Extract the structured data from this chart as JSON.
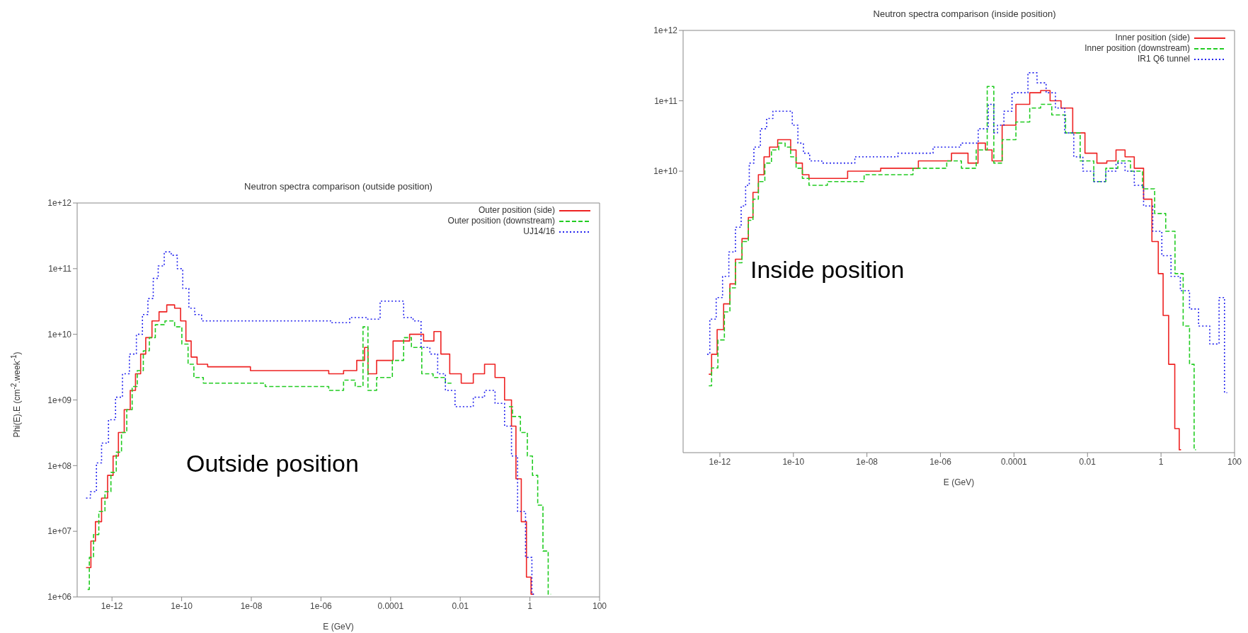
{
  "chart_data": [
    {
      "type": "step",
      "title": "Neutron spectra comparison (outside position)",
      "xlabel": "E (GeV)",
      "ylabel": "Phi(E).E (cm$^{-2}$.week$^{-1}$)",
      "log": "xy",
      "legend": "top right",
      "annotations": [
        "Outside position"
      ],
      "xlim": [
        1e-13,
        100
      ],
      "xticks": [
        {
          "value": 1e-12,
          "label": "1e-12"
        },
        {
          "value": 1e-10,
          "label": "1e-10"
        },
        {
          "value": 1e-08,
          "label": "1e-08"
        },
        {
          "value": 1e-06,
          "label": "1e-06"
        },
        {
          "value": 0.0001,
          "label": "0.0001"
        },
        {
          "value": 0.01,
          "label": "0.01"
        },
        {
          "value": 1,
          "label": "1"
        },
        {
          "value": 100,
          "label": "100"
        }
      ],
      "ylim": [
        1000000.0,
        1000000000000.0
      ],
      "yticks": [
        {
          "value": 1000000.0,
          "label": "1e+06"
        },
        {
          "value": 10000000.0,
          "label": "1e+07"
        },
        {
          "value": 100000000.0,
          "label": "1e+08"
        },
        {
          "value": 1000000000.0,
          "label": "1e+09"
        },
        {
          "value": 10000000000.0,
          "label": "1e+10"
        },
        {
          "value": 100000000000.0,
          "label": "1e+11"
        },
        {
          "value": 1000000000000.0,
          "label": "1e+12"
        }
      ],
      "series": [
        {
          "name": "Outer position (side)",
          "color": "#ee2222",
          "line_style": "solid",
          "x": [
            1.8e-13,
            2.2e-13,
            2.8e-13,
            4e-13,
            6.3e-13,
            8.9e-13,
            1.3e-12,
            1.8e-12,
            2.8e-12,
            4e-12,
            5.6e-12,
            7.9e-12,
            1.1e-11,
            1.8e-11,
            2.8e-11,
            5e-11,
            7.9e-11,
            1.1e-10,
            1.6e-10,
            2.2e-10,
            3.5e-10,
            8.9e-10,
            1e-07,
            1e-06,
            2.8e-06,
            7.1e-06,
            1.6e-05,
            2e-05,
            2.5e-05,
            6.3e-05,
            0.00022,
            0.00056,
            0.0014,
            0.0022,
            0.0035,
            0.0071,
            0.016,
            0.035,
            0.071,
            0.14,
            0.25,
            0.35,
            0.45,
            0.71,
            0.89,
            1.3
          ],
          "values": [
            2800000.0,
            2800000.0,
            7100000.0,
            14000000.0,
            32000000.0,
            71000000.0,
            140000000.0,
            320000000.0,
            710000000.0,
            1400000000.0,
            2500000000.0,
            5000000000.0,
            8900000000.0,
            16000000000.0,
            22000000000.0,
            28000000000.0,
            25000000000.0,
            16000000000.0,
            7900000000.0,
            4500000000.0,
            3500000000.0,
            3200000000.0,
            2800000000.0,
            2800000000.0,
            2500000000.0,
            2800000000.0,
            4000000000.0,
            6300000000.0,
            2500000000.0,
            4000000000.0,
            7900000000.0,
            10000000000.0,
            7900000000.0,
            11000000000.0,
            5000000000.0,
            2500000000.0,
            1800000000.0,
            2500000000.0,
            3500000000.0,
            2200000000.0,
            1000000000.0,
            400000000.0,
            63000000.0,
            14000000.0,
            2000000.0,
            1100000.0
          ]
        },
        {
          "name": "Outer position (downstream)",
          "color": "#22cc22",
          "line_style": "dashed",
          "x": [
            2e-13,
            2.5e-13,
            3.5e-13,
            5e-13,
            7.9e-13,
            1.1e-12,
            1.6e-12,
            2.2e-12,
            3.2e-12,
            4.5e-12,
            6.3e-12,
            1e-11,
            1.4e-11,
            2.2e-11,
            5e-11,
            7.9e-11,
            1.3e-10,
            1.8e-10,
            2.8e-10,
            6.3e-10,
            1e-06,
            2.8e-06,
            7.1e-06,
            1.3e-05,
            2e-05,
            2.5e-05,
            6.3e-05,
            0.0002,
            0.00028,
            0.00056,
            0.0011,
            0.0025,
            0.0056,
            0.035,
            0.25,
            0.4,
            0.71,
            1,
            1.4,
            2,
            2.8,
            4
          ],
          "values": [
            1300000.0,
            4000000.0,
            8900000.0,
            20000000.0,
            40000000.0,
            79000000.0,
            160000000.0,
            320000000.0,
            710000000.0,
            1600000000.0,
            2800000000.0,
            5600000000.0,
            8900000000.0,
            14000000000.0,
            16000000000.0,
            13000000000.0,
            7100000000.0,
            3500000000.0,
            2200000000.0,
            1800000000.0,
            1600000000.0,
            1400000000.0,
            2000000000.0,
            1600000000.0,
            13000000000.0,
            1400000000.0,
            2200000000.0,
            4000000000.0,
            8900000000.0,
            6300000000.0,
            2500000000.0,
            2200000000.0,
            1800000000.0,
            null,
            790000000.0,
            560000000.0,
            320000000.0,
            140000000.0,
            71000000.0,
            25000000.0,
            5000000.0,
            1100000.0
          ]
        },
        {
          "name": "UJ14/16",
          "color": "#2222ee",
          "line_style": "dotted",
          "x": [
            1.8e-13,
            3.2e-13,
            4e-13,
            6.3e-13,
            1e-12,
            1.6e-12,
            2.5e-12,
            4e-12,
            6.3e-12,
            8.9e-12,
            1.3e-11,
            1.8e-11,
            2.5e-11,
            4e-11,
            6.3e-11,
            8.9e-11,
            1.3e-10,
            2e-10,
            2.8e-10,
            5e-10,
            1e-08,
            1.3e-06,
            2.8e-06,
            1.6e-05,
            2.5e-05,
            0.0001,
            0.00016,
            0.00035,
            0.00056,
            0.001,
            0.0018,
            0.0028,
            0.005,
            0.01,
            0.016,
            0.035,
            0.071,
            0.14,
            0.25,
            0.35,
            0.56,
            1,
            1.3
          ],
          "values": [
            32000000.0,
            40000000.0,
            110000000.0,
            220000000.0,
            500000000.0,
            1100000000.0,
            2500000000.0,
            5000000000.0,
            10000000000.0,
            20000000000.0,
            35000000000.0,
            71000000000.0,
            110000000000.0,
            180000000000.0,
            160000000000.0,
            100000000000.0,
            50000000000.0,
            25000000000.0,
            20000000000.0,
            16000000000.0,
            16000000000.0,
            16000000000.0,
            15000000000.0,
            18000000000.0,
            17000000000.0,
            32000000000.0,
            32000000000.0,
            18000000000.0,
            16000000000.0,
            6300000000.0,
            5000000000.0,
            2500000000.0,
            1400000000.0,
            790000000.0,
            790000000.0,
            1100000000.0,
            1400000000.0,
            890000000.0,
            400000000.0,
            140000000.0,
            20000000.0,
            4000000.0,
            1100000.0
          ]
        }
      ]
    },
    {
      "type": "step",
      "title": "Neutron spectra comparison (inside position)",
      "xlabel": "E (GeV)",
      "log": "xy",
      "legend": "top right",
      "annotations": [
        "Inside position"
      ],
      "xlim": [
        1e-13,
        100
      ],
      "xticks": [
        {
          "value": 1e-12,
          "label": "1e-12"
        },
        {
          "value": 1e-10,
          "label": "1e-10"
        },
        {
          "value": 1e-08,
          "label": "1e-08"
        },
        {
          "value": 1e-06,
          "label": "1e-06"
        },
        {
          "value": 0.0001,
          "label": "0.0001"
        },
        {
          "value": 0.01,
          "label": "0.01"
        },
        {
          "value": 1,
          "label": "1"
        },
        {
          "value": 100,
          "label": "100"
        }
      ],
      "ylim": [
        1000000.0,
        1000000000000.0
      ],
      "yticks": [
        {
          "value": 10000000000.0,
          "label": "1e+10"
        },
        {
          "value": 100000000000.0,
          "label": "1e+11"
        },
        {
          "value": 1000000000000.0,
          "label": "1e+12"
        }
      ],
      "series": [
        {
          "name": "Inner position (side)",
          "color": "#ee2222",
          "line_style": "solid",
          "x": [
            5e-13,
            7.1e-13,
            1e-12,
            1.6e-12,
            2.2e-12,
            3.2e-12,
            5e-12,
            7.1e-12,
            8.9e-12,
            1.4e-11,
            1.8e-11,
            2.8e-11,
            5e-11,
            7.1e-11,
            1e-10,
            1.4e-10,
            2.2e-10,
            3.2e-10,
            1e-09,
            8.9e-09,
            6.3e-08,
            1e-06,
            4e-06,
            7.9e-06,
            1.4e-05,
            2e-05,
            3.2e-05,
            7.1e-05,
            0.00018,
            0.0004,
            0.00071,
            0.0013,
            0.0028,
            0.0056,
            0.013,
            0.025,
            0.045,
            0.079,
            0.14,
            0.25,
            0.45,
            0.71,
            1,
            1.3,
            2,
            2.8,
            3.5
          ],
          "values": [
            13000000.0,
            25000000.0,
            56000000.0,
            130000000.0,
            250000000.0,
            560000000.0,
            1100000000.0,
            2200000000.0,
            5000000000.0,
            8900000000.0,
            16000000000.0,
            22000000000.0,
            28000000000.0,
            28000000000.0,
            20000000000.0,
            13000000000.0,
            8900000000.0,
            7900000000.0,
            7900000000.0,
            10000000000.0,
            11000000000.0,
            14000000000.0,
            18000000000.0,
            13000000000.0,
            25000000000.0,
            20000000000.0,
            14000000000.0,
            45000000000.0,
            89000000000.0,
            130000000000.0,
            140000000000.0,
            100000000000.0,
            79000000000.0,
            35000000000.0,
            18000000000.0,
            13000000000.0,
            14000000000.0,
            20000000000.0,
            16000000000.0,
            11000000000.0,
            4000000000.0,
            1000000000.0,
            350000000.0,
            89000000.0,
            18000000.0,
            2200000.0,
            1100000.0
          ]
        },
        {
          "name": "Inner position (downstream)",
          "color": "#22cc22",
          "line_style": "dashed",
          "x": [
            5e-13,
            7.1e-13,
            1.1e-12,
            1.6e-12,
            2.2e-12,
            3.2e-12,
            5e-12,
            7.1e-12,
            8.9e-12,
            1.4e-11,
            2e-11,
            3.2e-11,
            5e-11,
            7.1e-11,
            1e-10,
            1.4e-10,
            2.2e-10,
            3.2e-10,
            2.2e-09,
            3.2e-08,
            1e-06,
            2.2e-06,
            6.3e-06,
            1.4e-05,
            2.5e-05,
            3.2e-05,
            7.1e-05,
            0.00018,
            0.0004,
            0.00071,
            0.0016,
            0.004,
            0.01,
            0.022,
            0.045,
            0.1,
            0.22,
            0.45,
            1,
            1.8,
            3.2,
            5,
            7.1,
            8.9
          ],
          "values": [
            8900000.0,
            16000000.0,
            40000000.0,
            100000000.0,
            220000000.0,
            500000000.0,
            1000000000.0,
            2000000000.0,
            4000000000.0,
            7100000000.0,
            13000000000.0,
            20000000000.0,
            25000000000.0,
            22000000000.0,
            16000000000.0,
            11000000000.0,
            7900000000.0,
            6300000000.0,
            7100000000.0,
            8900000000.0,
            11000000000.0,
            14000000000.0,
            11000000000.0,
            20000000000.0,
            160000000000.0,
            13000000000.0,
            28000000000.0,
            50000000000.0,
            79000000000.0,
            89000000000.0,
            63000000000.0,
            35000000000.0,
            14000000000.0,
            7100000000.0,
            11000000000.0,
            14000000000.0,
            10000000000.0,
            5600000000.0,
            2500000000.0,
            1400000000.0,
            350000000.0,
            63000000.0,
            18000000.0,
            1100000.0
          ]
        },
        {
          "name": "IR1 Q6 tunnel",
          "color": "#2222ee",
          "line_style": "dotted",
          "x": [
            4.5e-13,
            6.3e-13,
            1e-12,
            1.4e-12,
            2.2e-12,
            3.2e-12,
            4.5e-12,
            5.6e-12,
            7.1e-12,
            1e-11,
            1.6e-11,
            2.2e-11,
            3.5e-11,
            7.9e-11,
            1.1e-10,
            1.6e-10,
            2.2e-10,
            3.5e-10,
            1e-09,
            2.2e-08,
            2.2e-07,
            1.8e-06,
            7.1e-06,
            1.6e-05,
            2.5e-05,
            3.2e-05,
            4e-05,
            7.1e-05,
            0.00011,
            0.00018,
            0.00032,
            0.00056,
            0.001,
            0.0018,
            0.0032,
            0.0056,
            0.01,
            0.022,
            0.045,
            0.079,
            0.14,
            0.25,
            0.45,
            0.79,
            1.4,
            2.5,
            4.5,
            7.9,
            14,
            32,
            45,
            63
          ],
          "values": [
            25000000.0,
            79000000.0,
            160000000.0,
            320000000.0,
            710000000.0,
            1600000000.0,
            3200000000.0,
            6300000000.0,
            13000000000.0,
            22000000000.0,
            40000000000.0,
            56000000000.0,
            71000000000.0,
            71000000000.0,
            45000000000.0,
            25000000000.0,
            18000000000.0,
            14000000000.0,
            13000000000.0,
            16000000000.0,
            18000000000.0,
            22000000000.0,
            25000000000.0,
            40000000000.0,
            89000000000.0,
            35000000000.0,
            45000000000.0,
            71000000000.0,
            130000000000.0,
            130000000000.0,
            250000000000.0,
            180000000000.0,
            130000000000.0,
            79000000000.0,
            35000000000.0,
            16000000000.0,
            10000000000.0,
            7100000000.0,
            10000000000.0,
            13000000000.0,
            10000000000.0,
            6300000000.0,
            3200000000.0,
            1400000000.0,
            630000000.0,
            320000000.0,
            200000000.0,
            110000000.0,
            63000000.0,
            35000000.0,
            160000000.0,
            7100000.0
          ]
        }
      ]
    }
  ]
}
